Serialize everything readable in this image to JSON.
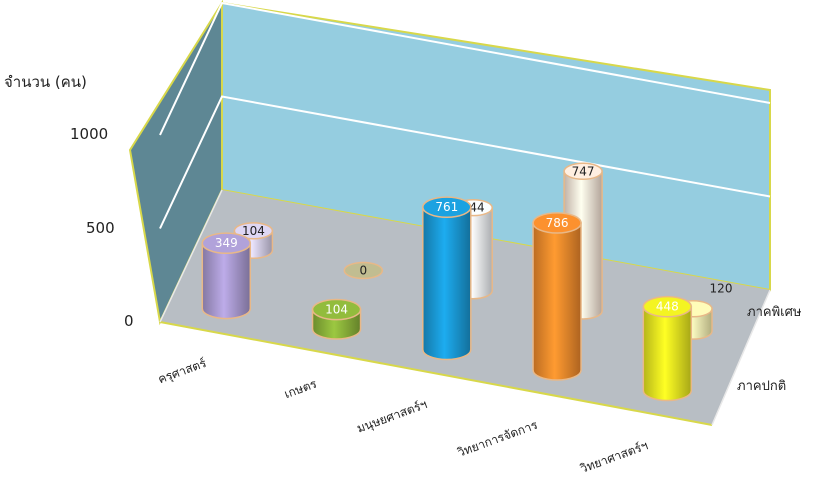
{
  "chart_data": {
    "type": "bar",
    "title": "",
    "ylabel": "จำนวน (คน)",
    "xlabel": "",
    "ylim": [
      0,
      1000
    ],
    "yticks": [
      0,
      500,
      1000
    ],
    "categories": [
      "ครุศาสตร์",
      "เกษตร",
      "มนุษยศาสตร์ฯ",
      "วิทยาการจัดการ",
      "วิทยาศาสตร์ฯ"
    ],
    "series": [
      {
        "name": "ภาคปกติ",
        "values": [
          349,
          104,
          761,
          786,
          448
        ],
        "colors": [
          "#a99ad0",
          "#8bb33a",
          "#1a9ad6",
          "#f08a2c",
          "#e8e820"
        ]
      },
      {
        "name": "ภาคพิเศษ",
        "values": [
          104,
          0,
          444,
          747,
          120
        ],
        "colors": [
          "#d3cde8",
          "#b8b48a",
          "#eef2f6",
          "#f8e4d6",
          "#f6f0b0"
        ]
      }
    ],
    "grid": true,
    "style": "3d-cylinder"
  }
}
